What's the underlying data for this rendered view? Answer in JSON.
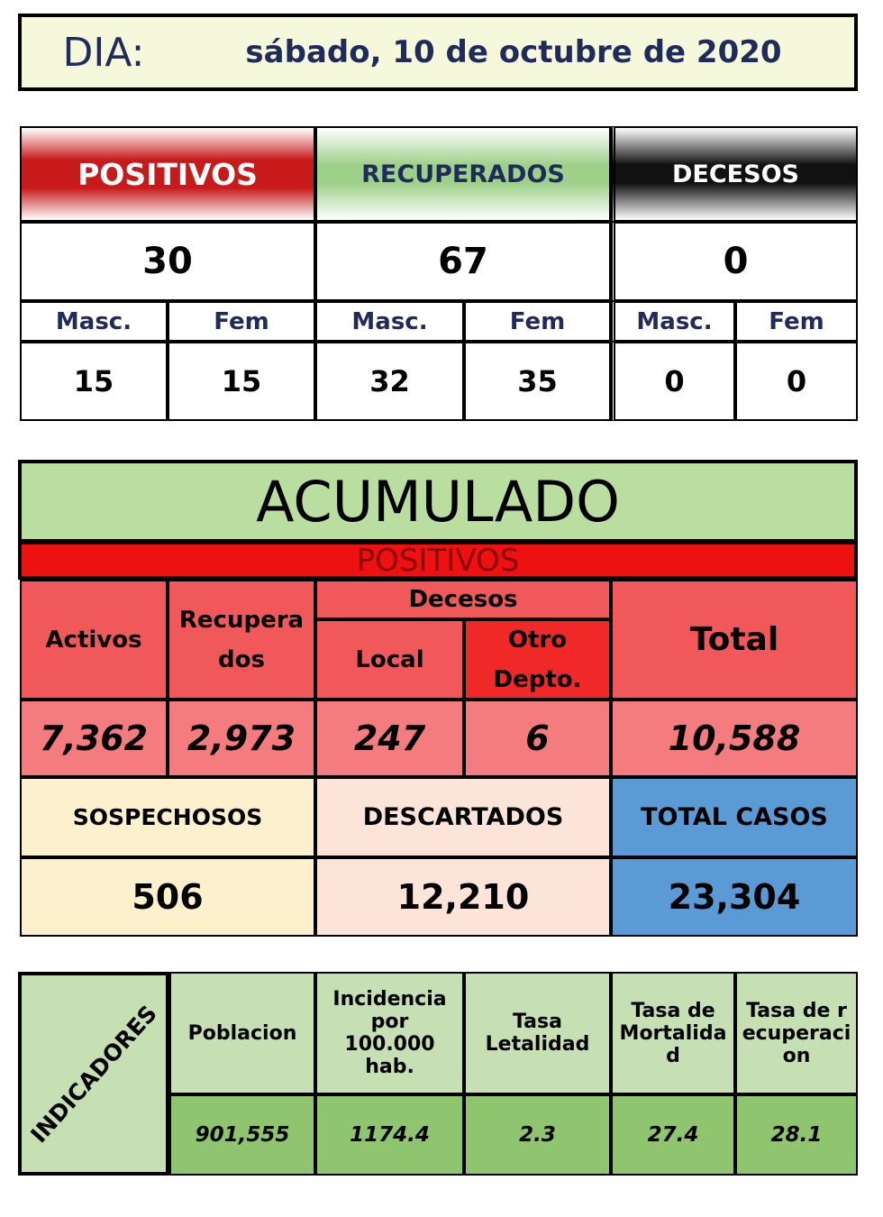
{
  "header": {
    "label": "DIA:",
    "date": "sábado, 10 de octubre de 2020"
  },
  "daily": [
    {
      "title": "POSITIVOS",
      "total": "30",
      "masc_label": "Masc.",
      "fem_label": "Fem",
      "masc": "15",
      "fem": "15"
    },
    {
      "title": "RECUPERADOS",
      "total": "67",
      "masc_label": "Masc.",
      "fem_label": "Fem",
      "masc": "32",
      "fem": "35"
    },
    {
      "title": "DECESOS",
      "total": "0",
      "masc_label": "Masc.",
      "fem_label": "Fem",
      "masc": "0",
      "fem": "0"
    }
  ],
  "accumulated": {
    "title": "ACUMULADO",
    "subtitle": "POSITIVOS",
    "headers": {
      "active": "Activos",
      "recovered": "Recuperados",
      "deaths": "Decesos",
      "local": "Local",
      "other": "Otro Depto.",
      "total": "Total"
    },
    "values": {
      "active": "7,362",
      "recovered": "2,973",
      "local": "247",
      "other": "6",
      "total": "10,588"
    },
    "summary": [
      {
        "label": "SOSPECHOSOS",
        "value": "506"
      },
      {
        "label": "DESCARTADOS",
        "value": "12,210"
      },
      {
        "label": "TOTAL CASOS",
        "value": "23,304"
      }
    ]
  },
  "indicators": {
    "title": "INDICADORES",
    "columns": [
      {
        "label": "Poblacion",
        "value": "901,555"
      },
      {
        "label": "Incidencia por 100.000 hab.",
        "value": "1174.4"
      },
      {
        "label": "Tasa Letalidad",
        "value": "2.3"
      },
      {
        "label": "Tasa de Mortalidad",
        "value": "27.4"
      },
      {
        "label": "Tasa de recuperacion",
        "value": "28.1"
      }
    ]
  }
}
